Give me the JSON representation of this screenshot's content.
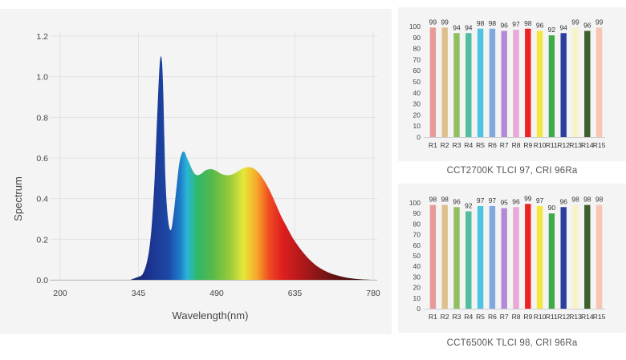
{
  "chart_data": [
    {
      "type": "area",
      "title": "",
      "xlabel": "Wavelength(nm)",
      "ylabel": "Spectrum",
      "xticks": [
        "200",
        "345",
        "490",
        "635",
        "780"
      ],
      "yticks": [
        "0.0",
        "0.2",
        "0.4",
        "0.6",
        "0.8",
        "1.0",
        "1.2"
      ],
      "xlim": [
        200,
        780
      ],
      "ylim": [
        0,
        1.2
      ],
      "grid": true,
      "x": [
        330,
        340,
        350,
        355,
        360,
        365,
        370,
        375,
        380,
        383,
        385,
        387,
        389,
        391,
        393,
        395,
        398,
        402,
        406,
        410,
        415,
        420,
        425,
        430,
        435,
        440,
        445,
        450,
        455,
        460,
        465,
        470,
        480,
        490,
        500,
        510,
        520,
        530,
        540,
        550,
        560,
        570,
        580,
        590,
        600,
        610,
        620,
        630,
        640,
        650,
        660,
        670,
        680,
        690,
        700,
        710,
        720,
        730,
        740,
        750,
        760,
        770,
        775
      ],
      "y": [
        0.0,
        0.01,
        0.02,
        0.04,
        0.08,
        0.15,
        0.28,
        0.5,
        0.82,
        1.0,
        1.08,
        1.1,
        1.06,
        0.92,
        0.7,
        0.5,
        0.35,
        0.26,
        0.25,
        0.32,
        0.44,
        0.56,
        0.62,
        0.63,
        0.6,
        0.57,
        0.54,
        0.52,
        0.515,
        0.52,
        0.53,
        0.54,
        0.545,
        0.535,
        0.52,
        0.515,
        0.52,
        0.535,
        0.55,
        0.555,
        0.545,
        0.52,
        0.48,
        0.43,
        0.37,
        0.31,
        0.26,
        0.21,
        0.17,
        0.135,
        0.105,
        0.08,
        0.06,
        0.045,
        0.033,
        0.024,
        0.017,
        0.011,
        0.007,
        0.004,
        0.002,
        0.001,
        0.0
      ]
    },
    {
      "type": "bar",
      "title": "",
      "caption": "CCT2700K TLCI 97, CRI 96Ra",
      "categories": [
        "R1",
        "R2",
        "R3",
        "R4",
        "R5",
        "R6",
        "R7",
        "R8",
        "R9",
        "R10",
        "R11",
        "R12",
        "R13",
        "R14",
        "R15"
      ],
      "values": [
        99,
        99,
        94,
        94,
        98,
        98,
        96,
        97,
        98,
        96,
        92,
        94,
        99,
        96,
        99
      ],
      "ylim": [
        0,
        100
      ],
      "yticks": [
        "0",
        "10",
        "20",
        "30",
        "40",
        "50",
        "60",
        "70",
        "80",
        "90",
        "100"
      ],
      "colors": [
        "#e89a9a",
        "#dfc08c",
        "#8fbf5f",
        "#4fbf9f",
        "#4fc4e0",
        "#7fa8e0",
        "#b48ad8",
        "#e8a8d8",
        "#ee2222",
        "#f6e83a",
        "#3faa48",
        "#2a3f9f",
        "#f6f3c8",
        "#3f5f2a",
        "#f8c4b4"
      ]
    },
    {
      "type": "bar",
      "title": "",
      "caption": "CCT6500K TLCI 98, CRI 96Ra",
      "categories": [
        "R1",
        "R2",
        "R3",
        "R4",
        "R5",
        "R6",
        "R7",
        "R8",
        "R9",
        "R10",
        "R11",
        "R12",
        "R13",
        "R14",
        "R15"
      ],
      "values": [
        98,
        98,
        96,
        92,
        97,
        97,
        95,
        96,
        99,
        97,
        90,
        96,
        98,
        98,
        98
      ],
      "ylim": [
        0,
        100
      ],
      "yticks": [
        "0",
        "10",
        "20",
        "30",
        "40",
        "50",
        "60",
        "70",
        "80",
        "90",
        "100"
      ],
      "colors": [
        "#e89a9a",
        "#dfc08c",
        "#8fbf5f",
        "#4fbf9f",
        "#4fc4e0",
        "#7fa8e0",
        "#b48ad8",
        "#e8a8d8",
        "#ee2222",
        "#f6e83a",
        "#3faa48",
        "#2a3f9f",
        "#f6f3c8",
        "#3f5f2a",
        "#f8c4b4"
      ]
    }
  ]
}
